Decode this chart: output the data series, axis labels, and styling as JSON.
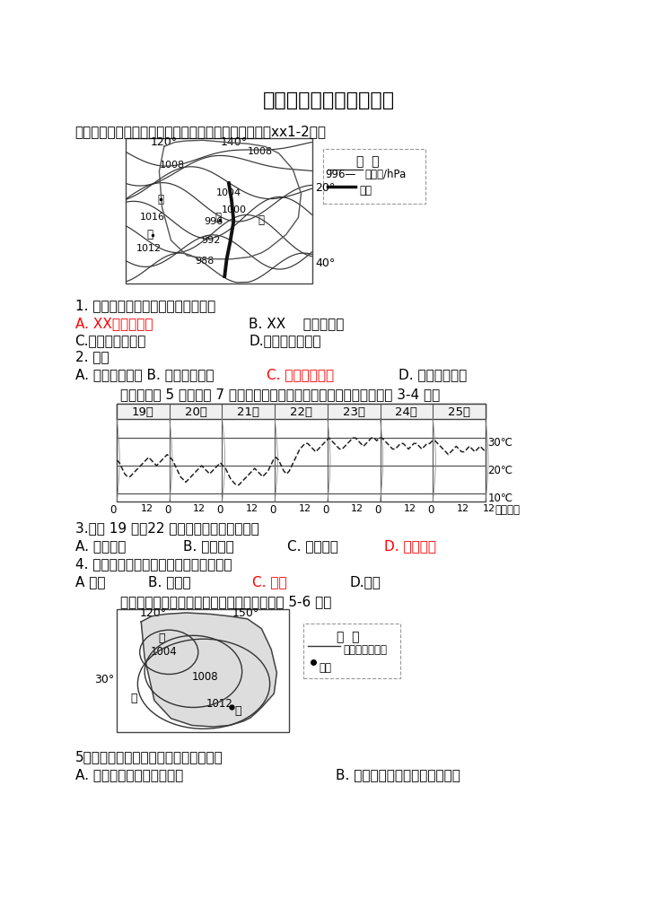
{
  "title": "大气的运动复习卷（三）",
  "background_color": "#ffffff",
  "desc1": "下图为某时刻澳大利亚及周边区域海平面气压分布图。xx1-2题。",
  "q1": "1. 槽线附近锋面性质及其移动方向为",
  "q1a": "A. XX顺时针移动",
  "q1b": "B. XX    逆时针移动",
  "q1c": "C.暖锋顺时针移动",
  "q1d": "D.暖锋逆时针移动",
  "q2": "2. 此时",
  "q2abcd": "A. 甲地沙暴肆虑 B. 乙地北风劲吹",
  "q2c": "C. 丙地大风降温",
  "q2d": "D. 丁地风大浪高",
  "desc2": "下图为某地 5 月份连续 7 日气温变化图（虚线为气温变化曲线）。完成 3-4 题。",
  "days": [
    "19日",
    "20日",
    "21日",
    "22日",
    "23日",
    "24日",
    "25日"
  ],
  "q3": "3.影响 19 日到22 日气温升降的主要因素是",
  "q3a": "A. 地形地势",
  "q3b": "B. 海降位置",
  "q3c": "C. 大气状况",
  "q3d": "D. 太阳辐射",
  "q4": "4. 图示期间过境该地的天气系统最可能是",
  "q4a": "A 气旋",
  "q4b": "B. 反气旋",
  "q4c": "C. 冷锋",
  "q4d": "D.暖锋",
  "desc3": "下图为澳大利亚大陆某月等压线分布图。完成 5-6 题。",
  "q5": "5．该月，甲地的盛行风及其成因分别是",
  "q5a": "A. 东南风海陆热力性质差异",
  "q5b": "B. 西南风气压带风带的季节移动",
  "leg1_isobar": "996—  等压线/hPa",
  "leg1_trough": "槽线",
  "leg3_isobar": "等压线（百帕）",
  "leg3_city": "城市",
  "fig_example": "图  例"
}
